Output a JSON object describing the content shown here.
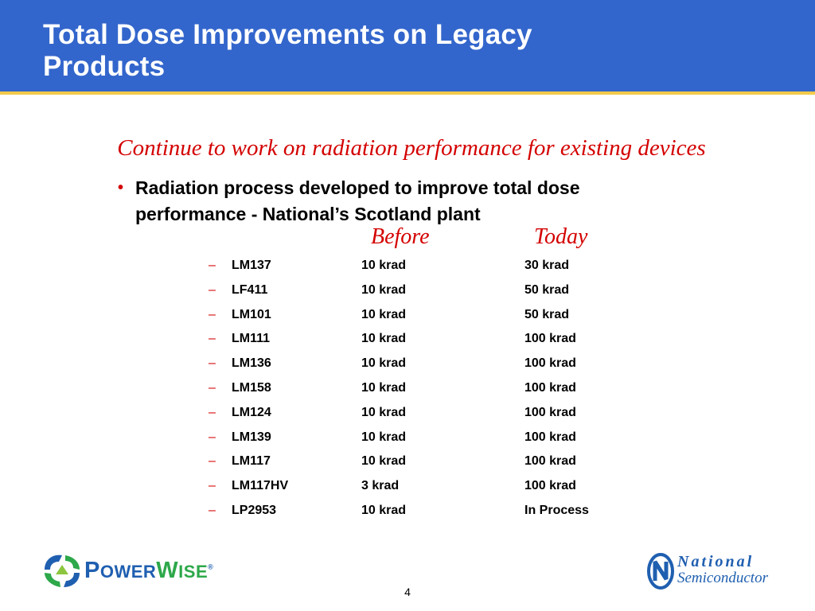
{
  "slide": {
    "title_line1": "Total Dose Improvements on Legacy",
    "title_line2": "Products",
    "subtitle": "Continue to work on radiation performance for existing devices",
    "bullet": {
      "symbol": "•",
      "line1": "Radiation process developed to improve total dose",
      "line2": "performance - National’s Scotland plant"
    },
    "columns": {
      "before": "Before",
      "today": "Today"
    },
    "dash": "–",
    "rows": [
      {
        "part": "LM137",
        "before": "10 krad",
        "today": "30 krad"
      },
      {
        "part": "LF411",
        "before": "10 krad",
        "today": "50 krad"
      },
      {
        "part": "LM101",
        "before": "10 krad",
        "today": "50 krad"
      },
      {
        "part": "LM111",
        "before": "10 krad",
        "today": "100 krad"
      },
      {
        "part": "LM136",
        "before": "10 krad",
        "today": "100 krad"
      },
      {
        "part": "LM158",
        "before": "10 krad",
        "today": "100 krad"
      },
      {
        "part": "LM124",
        "before": "10 krad",
        "today": "100 krad"
      },
      {
        "part": "LM139",
        "before": "10 krad",
        "today": "100 krad"
      },
      {
        "part": "LM117",
        "before": "10 krad",
        "today": "100 krad"
      },
      {
        "part": "LM117HV",
        "before": "3 krad",
        "today": "100 krad"
      },
      {
        "part": "LP2953",
        "before": "10 krad",
        "today": "In Process"
      }
    ],
    "page_number": "4"
  },
  "logos": {
    "powerwise": {
      "p": "P",
      "ower": "OWER",
      "w": "W",
      "ise": "ISE",
      "mark": "®",
      "icon": "powerwise-arrows-icon"
    },
    "national": {
      "line1": "National",
      "line2": "Semiconductor",
      "icon": "national-n-icon"
    }
  },
  "colors": {
    "header_bg": "#3366cc",
    "header_rule": "#f3c94a",
    "accent_red": "#d40000",
    "logo_blue": "#1f5fb0",
    "logo_green": "#2da84a"
  }
}
